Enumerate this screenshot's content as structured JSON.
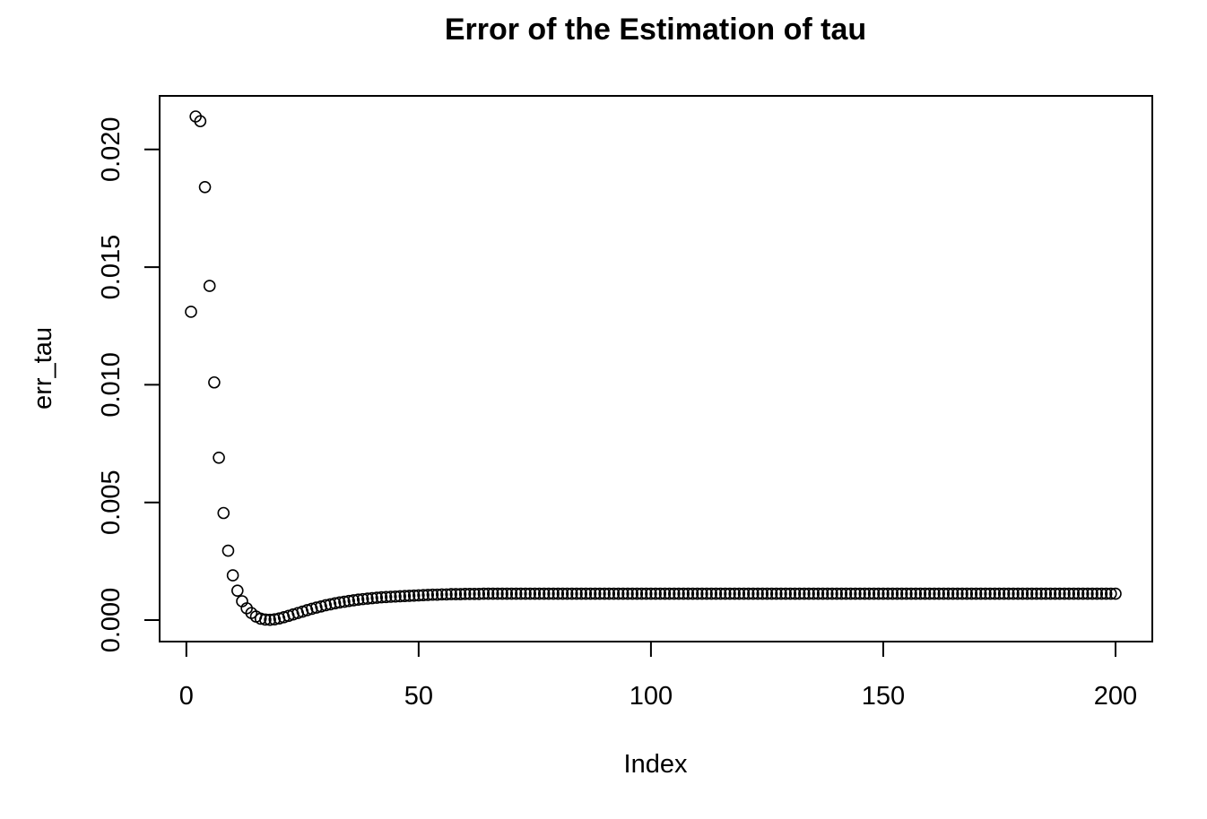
{
  "chart_data": {
    "type": "scatter",
    "title": "Error of the Estimation of tau",
    "xlabel": "Index",
    "ylabel": "err_tau",
    "xlim": [
      1,
      200
    ],
    "ylim": [
      0,
      0.0214
    ],
    "x_ticks": [
      0,
      50,
      100,
      150,
      200
    ],
    "x_tick_labels": [
      "0",
      "50",
      "100",
      "150",
      "200"
    ],
    "y_ticks": [
      0,
      0.005,
      0.01,
      0.015,
      0.02
    ],
    "y_tick_labels": [
      "0.000",
      "0.005",
      "0.010",
      "0.015",
      "0.020"
    ],
    "marker": "open-circle",
    "grid": false,
    "series": [
      {
        "x_start": 1,
        "values": [
          0.0131,
          0.0214,
          0.0212,
          0.0184,
          0.0142,
          0.0101,
          0.0069,
          0.00455,
          0.00295,
          0.0019,
          0.00125,
          0.0008,
          0.0005,
          0.0003,
          0.00015,
          6e-05,
          2e-05,
          1e-05,
          3e-05,
          7e-05,
          0.00012,
          0.00018,
          0.00024,
          0.0003,
          0.00036,
          0.00042,
          0.00048,
          0.00053,
          0.00058,
          0.00063,
          0.00067,
          0.00071,
          0.00075,
          0.00078,
          0.00081,
          0.00084,
          0.00087,
          0.00089,
          0.00091,
          0.00093,
          0.00095,
          0.00097,
          0.00098,
          0.00099,
          0.001,
          0.00101,
          0.00102,
          0.00103,
          0.00104,
          0.00105,
          0.00106,
          0.00107,
          0.00108,
          0.00108,
          0.00109,
          0.00109,
          0.0011,
          0.0011,
          0.0011,
          0.00111,
          0.00111,
          0.00111,
          0.00111,
          0.00112
        ],
        "plateau_value": 0.00112,
        "count": 200
      }
    ]
  }
}
